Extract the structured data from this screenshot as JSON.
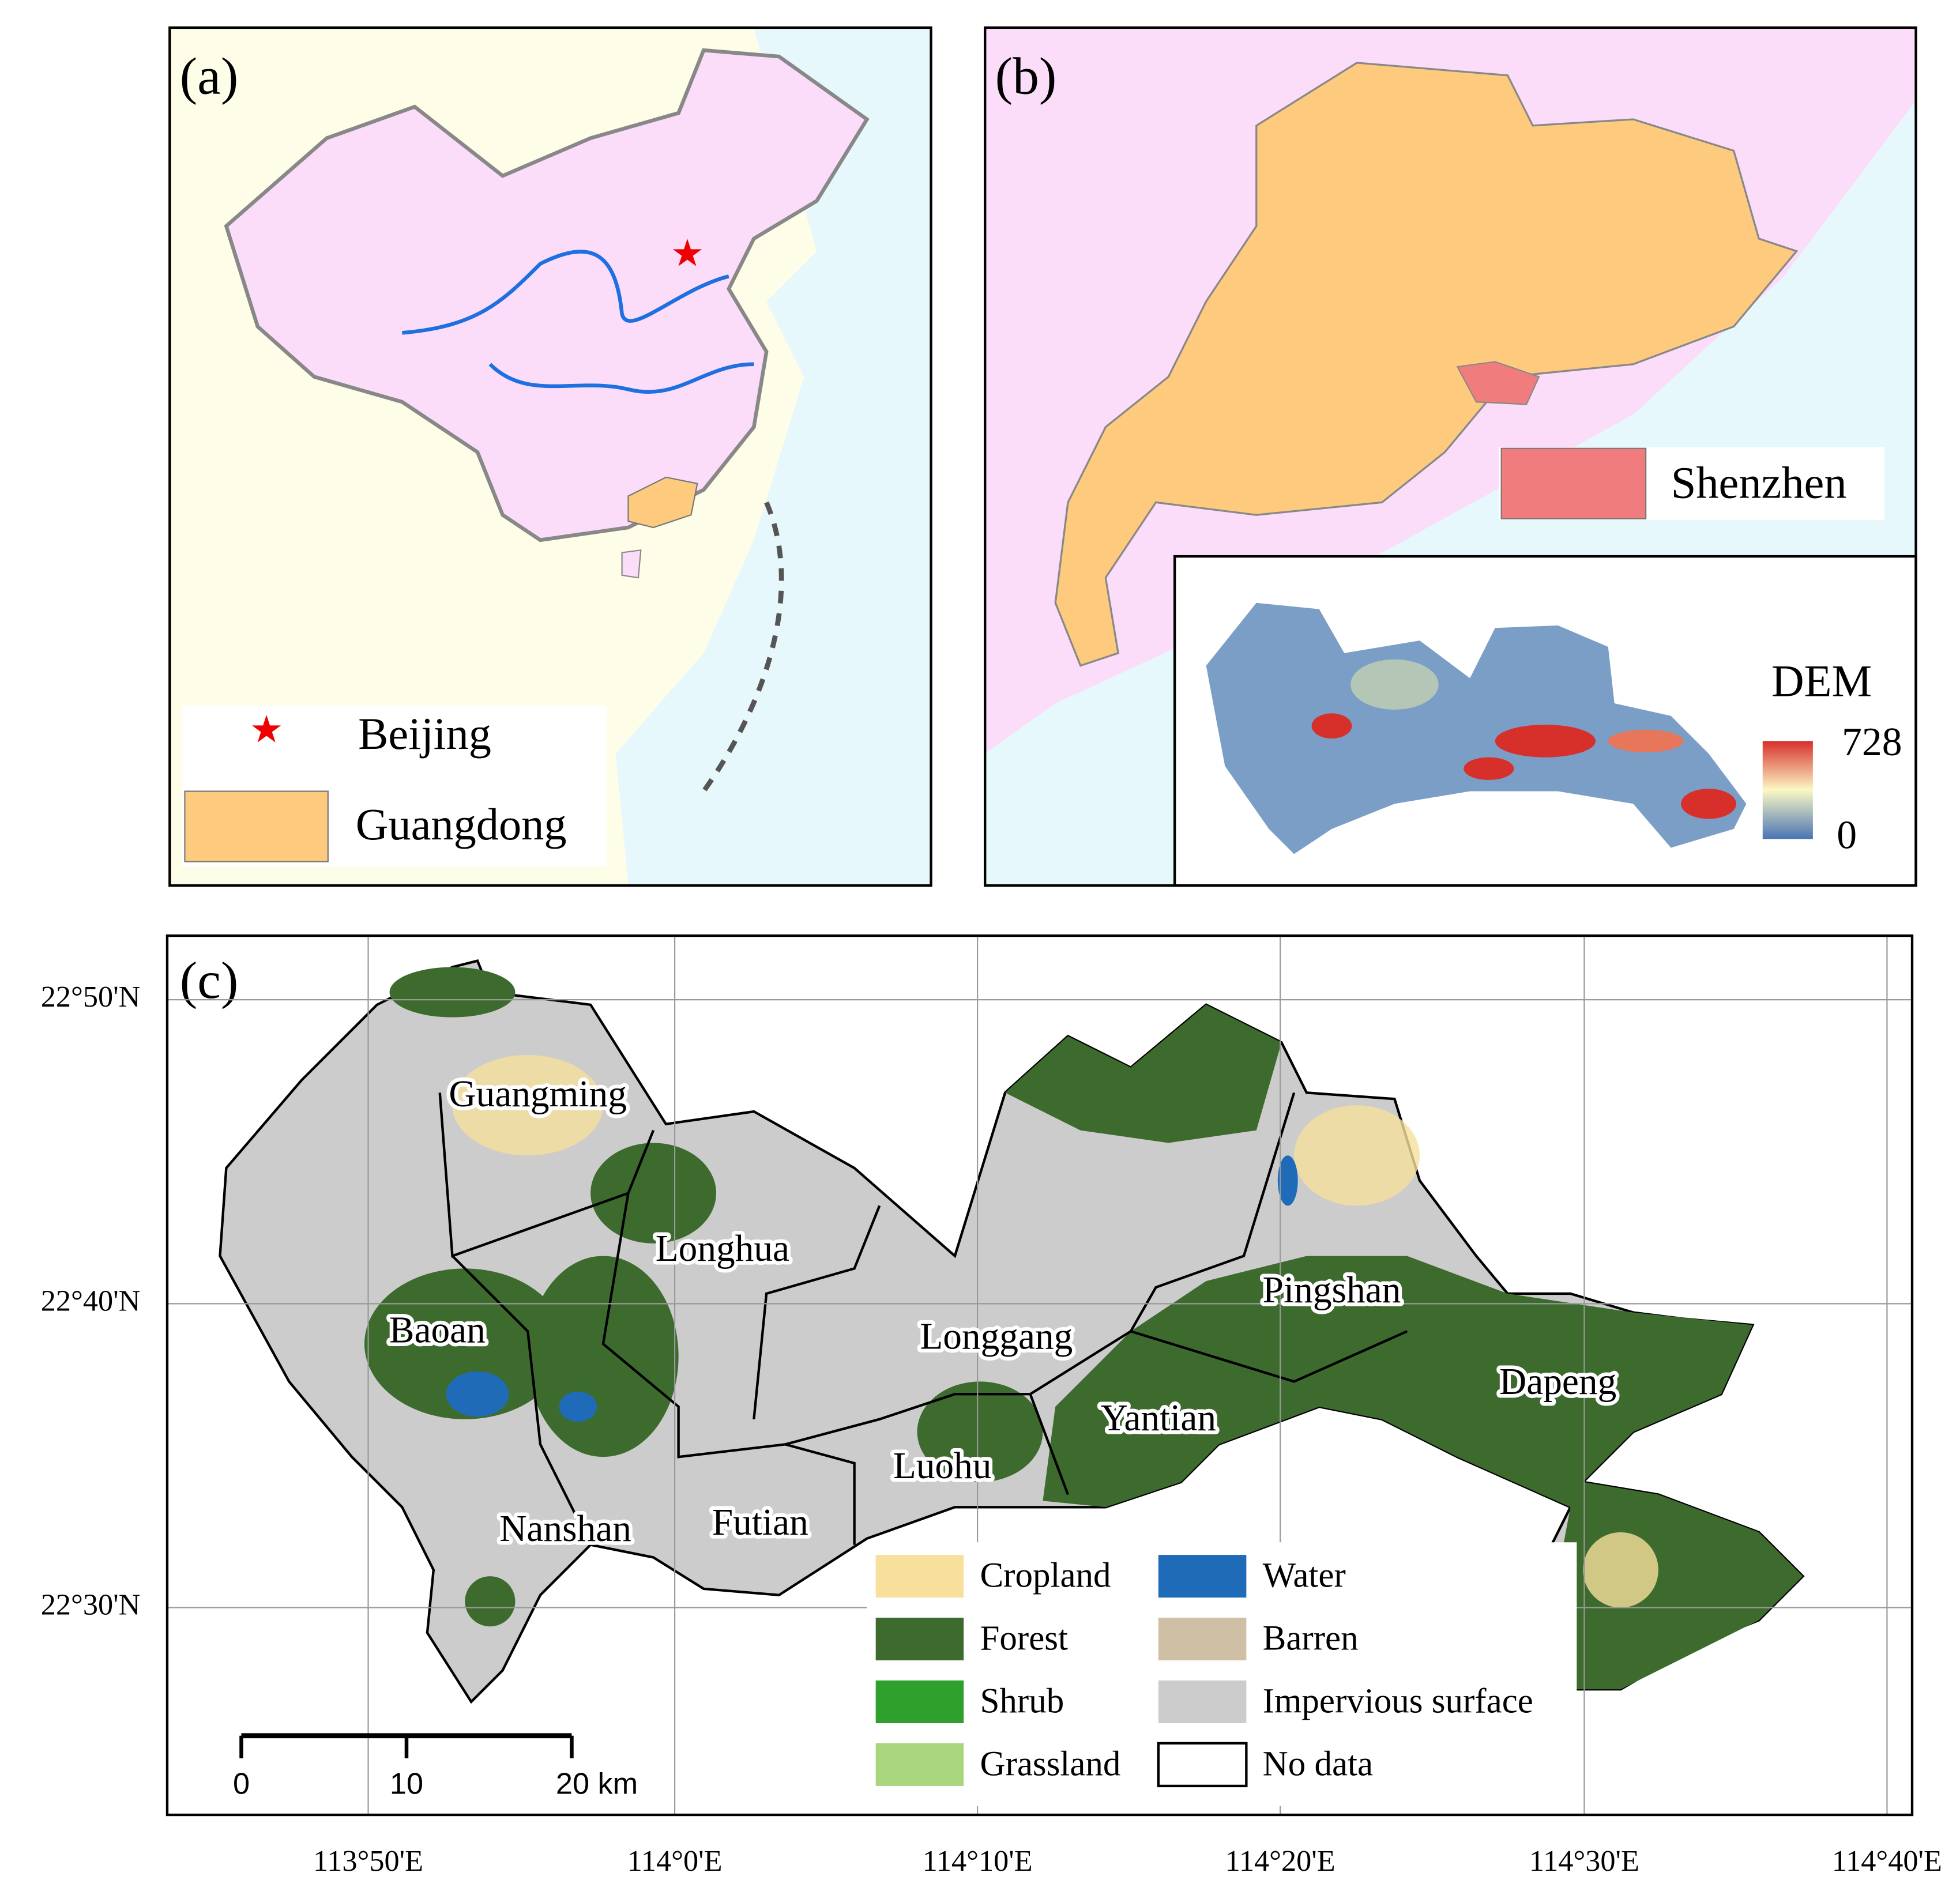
{
  "panel_a": {
    "label": "(a)",
    "legend": [
      "Beijing",
      "Guangdong"
    ]
  },
  "panel_b": {
    "label": "(b)",
    "legend": [
      "Shenzhen"
    ],
    "dem": {
      "title": "DEM",
      "max": 728,
      "min": 0
    }
  },
  "panel_c": {
    "label": "(c)",
    "districts": [
      "Guangming",
      "Longhua",
      "Baoan",
      "Longgang",
      "Pingshan",
      "Dapeng",
      "Yantian",
      "Luohu",
      "Nanshan",
      "Futian"
    ],
    "land_cover": [
      {
        "name": "Cropland",
        "color": "#f6e09c"
      },
      {
        "name": "Forest",
        "color": "#3d6b2e"
      },
      {
        "name": "Shrub",
        "color": "#2ea02c"
      },
      {
        "name": "Grassland",
        "color": "#a8d57e"
      },
      {
        "name": "Water",
        "color": "#1f6bb8"
      },
      {
        "name": "Barren",
        "color": "#cfbfa4"
      },
      {
        "name": "Impervious surface",
        "color": "#cccccc"
      },
      {
        "name": "No data",
        "color": "#ffffff"
      }
    ],
    "scale_bar": {
      "ticks": [
        0,
        10,
        {
          "value": 20,
          "label": "20 km"
        }
      ]
    },
    "lon_labels": [
      "113°50'E",
      "114°0'E",
      "114°10'E",
      "114°20'E",
      "114°30'E",
      "114°40'E"
    ],
    "lat_labels": [
      "22°50'N",
      "22°40'N",
      "22°30'N"
    ]
  }
}
